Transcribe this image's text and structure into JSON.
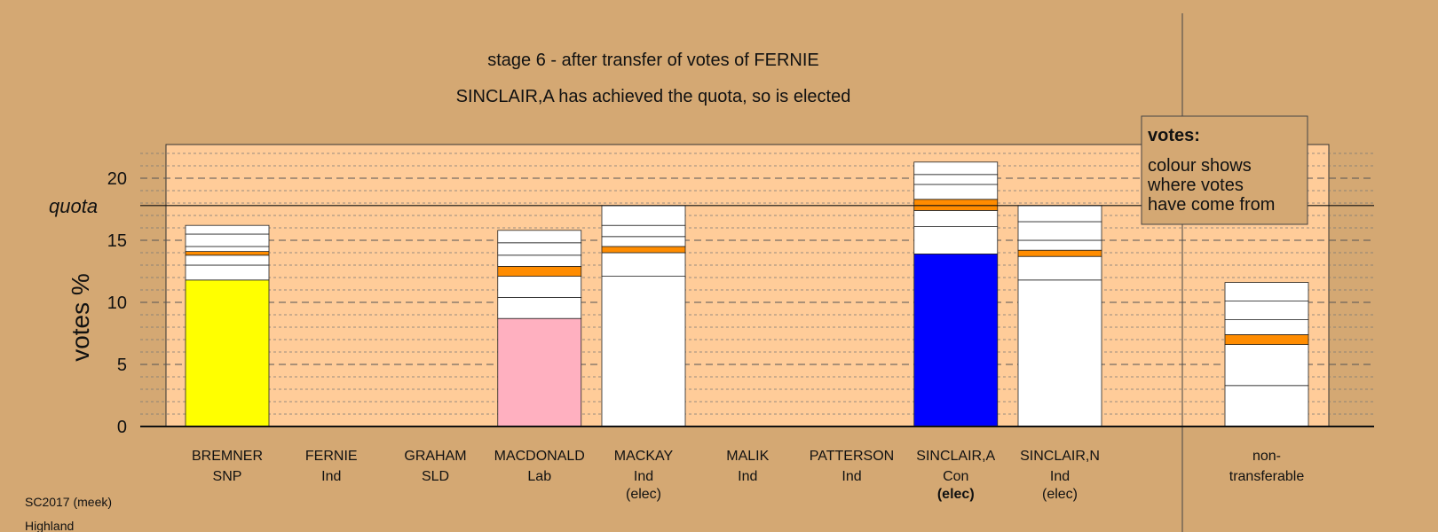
{
  "title": "stage 6 - after transfer of votes of FERNIE",
  "subtitle": "SINCLAIR,A has achieved the quota, so is elected",
  "footer": {
    "line1": "SC2017 (meek)",
    "line2": "Highland"
  },
  "legend": {
    "heading": "votes:",
    "lines": [
      "colour shows",
      "where votes",
      "have come from"
    ]
  },
  "colors": {
    "background": "#d4a873",
    "plot_area": "#ffcc99",
    "transfer": "#ff8c00",
    "SNP": "#ffff00",
    "Lab": "#ffb0c0",
    "Con": "#0000ff",
    "Ind": "#ffffff",
    "SLD": "#ffd700"
  },
  "chart_data": {
    "type": "bar",
    "stacked": true,
    "ylabel": "votes %",
    "ylim": [
      0,
      22.7
    ],
    "yticks": [
      0,
      5,
      10,
      15,
      20
    ],
    "quota_label": "quota",
    "quota": 17.8,
    "grid": "dashed at major ticks, dotted at minor ticks",
    "legend_position": "top-right",
    "candidates": [
      {
        "name": "BREMNER",
        "party": "SNP",
        "status": "",
        "total": 16.2,
        "segments": [
          {
            "value": 11.8,
            "color": "#ffff00"
          },
          {
            "value": 1.2,
            "color": "#ffffff"
          },
          {
            "value": 0.8,
            "color": "#ffffff"
          },
          {
            "value": 0.3,
            "color": "#ff8c00"
          },
          {
            "value": 0.4,
            "color": "#ffffff"
          },
          {
            "value": 1.0,
            "color": "#ffffff"
          },
          {
            "value": 0.7,
            "color": "#ffffff"
          }
        ]
      },
      {
        "name": "FERNIE",
        "party": "Ind",
        "status": "",
        "total": 0,
        "segments": []
      },
      {
        "name": "GRAHAM",
        "party": "SLD",
        "status": "",
        "total": 0,
        "segments": []
      },
      {
        "name": "MACDONALD",
        "party": "Lab",
        "status": "",
        "total": 15.8,
        "segments": [
          {
            "value": 8.7,
            "color": "#ffb0c0"
          },
          {
            "value": 1.7,
            "color": "#ffffff"
          },
          {
            "value": 1.7,
            "color": "#ffffff"
          },
          {
            "value": 0.8,
            "color": "#ff8c00"
          },
          {
            "value": 0.9,
            "color": "#ffffff"
          },
          {
            "value": 1.0,
            "color": "#ffffff"
          },
          {
            "value": 1.0,
            "color": "#ffffff"
          }
        ]
      },
      {
        "name": "MACKAY",
        "party": "Ind",
        "status": "(elec)",
        "total": 17.8,
        "segments": [
          {
            "value": 12.1,
            "color": "#ffffff"
          },
          {
            "value": 1.9,
            "color": "#ffffff"
          },
          {
            "value": 0.5,
            "color": "#ff8c00"
          },
          {
            "value": 0.8,
            "color": "#ffffff"
          },
          {
            "value": 0.9,
            "color": "#ffffff"
          },
          {
            "value": 1.6,
            "color": "#ffffff"
          }
        ]
      },
      {
        "name": "MALIK",
        "party": "Ind",
        "status": "",
        "total": 0,
        "segments": []
      },
      {
        "name": "PATTERSON",
        "party": "Ind",
        "status": "",
        "total": 0,
        "segments": []
      },
      {
        "name": "SINCLAIR,A",
        "party": "Con",
        "status": "(elec)",
        "status_bold": true,
        "total": 21.3,
        "segments": [
          {
            "value": 13.9,
            "color": "#0000ff"
          },
          {
            "value": 2.2,
            "color": "#ffffff"
          },
          {
            "value": 1.3,
            "color": "#ffffff"
          },
          {
            "value": 0.9,
            "color": "#ff8c00"
          },
          {
            "value": 1.2,
            "color": "#ffffff"
          },
          {
            "value": 0.8,
            "color": "#ffffff"
          },
          {
            "value": 1.0,
            "color": "#ffffff"
          }
        ]
      },
      {
        "name": "SINCLAIR,N",
        "party": "Ind",
        "status": "(elec)",
        "total": 17.8,
        "segments": [
          {
            "value": 11.8,
            "color": "#ffffff"
          },
          {
            "value": 1.9,
            "color": "#ffffff"
          },
          {
            "value": 0.5,
            "color": "#ff8c00"
          },
          {
            "value": 0.8,
            "color": "#ffffff"
          },
          {
            "value": 1.5,
            "color": "#ffffff"
          },
          {
            "value": 1.3,
            "color": "#ffffff"
          }
        ]
      }
    ],
    "nontransferable": {
      "label_line1": "non-",
      "label_line2": "transferable",
      "total": 11.6,
      "segments": [
        {
          "value": 3.3,
          "color": "#ffffff"
        },
        {
          "value": 3.3,
          "color": "#ffffff"
        },
        {
          "value": 0.8,
          "color": "#ff8c00"
        },
        {
          "value": 1.2,
          "color": "#ffffff"
        },
        {
          "value": 1.5,
          "color": "#ffffff"
        },
        {
          "value": 1.5,
          "color": "#ffffff"
        }
      ]
    }
  }
}
